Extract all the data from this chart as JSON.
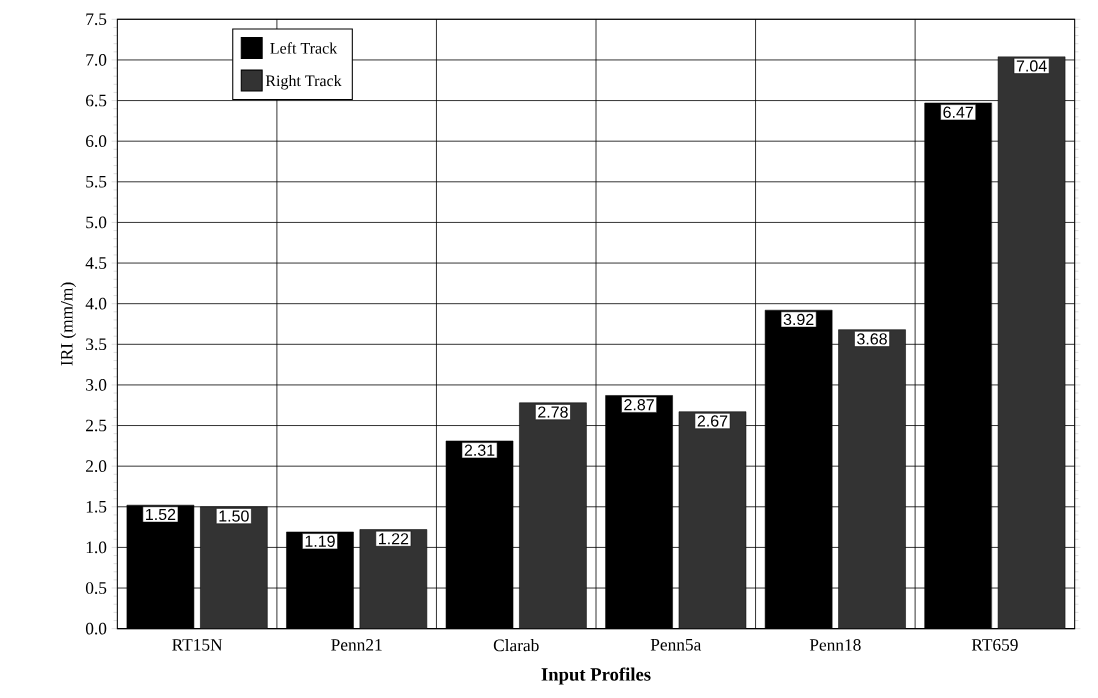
{
  "chart_data": {
    "type": "bar",
    "xlabel": "Input Profiles",
    "ylabel": "IRI (mm/m)",
    "categories": [
      "RT15N",
      "Penn21",
      "Clarab",
      "Penn5a",
      "Penn18",
      "RT659"
    ],
    "series": [
      {
        "name": "Left Track",
        "color": "#000000",
        "values": [
          1.52,
          1.19,
          2.31,
          2.87,
          3.92,
          6.47
        ],
        "value_labels": [
          "1.52",
          "1.19",
          "2.31",
          "2.87",
          "3.92",
          "6.47"
        ]
      },
      {
        "name": "Right Track",
        "color": "#333333",
        "values": [
          1.5,
          1.22,
          2.78,
          2.67,
          3.68,
          7.04
        ],
        "value_labels": [
          "1.50",
          "1.22",
          "2.78",
          "2.67",
          "3.68",
          "7.04"
        ]
      }
    ],
    "ylim": [
      0,
      7.5
    ],
    "yticks": [
      {
        "value": 0,
        "label": "0.0"
      },
      {
        "value": 0.5,
        "label": "0.5"
      },
      {
        "value": 1,
        "label": "1.0"
      },
      {
        "value": 1.5,
        "label": "1.5"
      },
      {
        "value": 2,
        "label": "2.0"
      },
      {
        "value": 2.5,
        "label": "2.5"
      },
      {
        "value": 3,
        "label": "3.0"
      },
      {
        "value": 3.5,
        "label": "3.5"
      },
      {
        "value": 4,
        "label": "4.0"
      },
      {
        "value": 4.5,
        "label": "4.5"
      },
      {
        "value": 5,
        "label": "5.0"
      },
      {
        "value": 5.5,
        "label": "5.5"
      },
      {
        "value": 6,
        "label": "6.0"
      },
      {
        "value": 6.5,
        "label": "6.5"
      },
      {
        "value": 7,
        "label": "7.0"
      },
      {
        "value": 7.5,
        "label": "7.5"
      }
    ],
    "grid": true,
    "legend": "top left"
  }
}
